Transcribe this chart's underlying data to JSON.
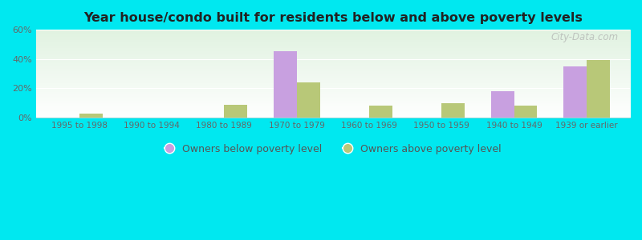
{
  "title": "Year house/condo built for residents below and above poverty levels",
  "categories": [
    "1995 to 1998",
    "1990 to 1994",
    "1980 to 1989",
    "1970 to 1979",
    "1960 to 1969",
    "1950 to 1959",
    "1940 to 1949",
    "1939 or earlier"
  ],
  "below_poverty": [
    0,
    0,
    0,
    45,
    0,
    0,
    18,
    35
  ],
  "above_poverty": [
    3,
    0,
    9,
    24,
    8,
    10,
    8,
    39
  ],
  "below_color": "#c8a0e0",
  "above_color": "#b8c878",
  "outer_bg": "#00e8f0",
  "ylim": [
    0,
    60
  ],
  "yticks": [
    0,
    20,
    40,
    60
  ],
  "ytick_labels": [
    "0%",
    "20%",
    "40%",
    "60%"
  ],
  "bar_width": 0.32,
  "legend_below_label": "Owners below poverty level",
  "legend_above_label": "Owners above poverty level",
  "watermark": "City-Data.com"
}
